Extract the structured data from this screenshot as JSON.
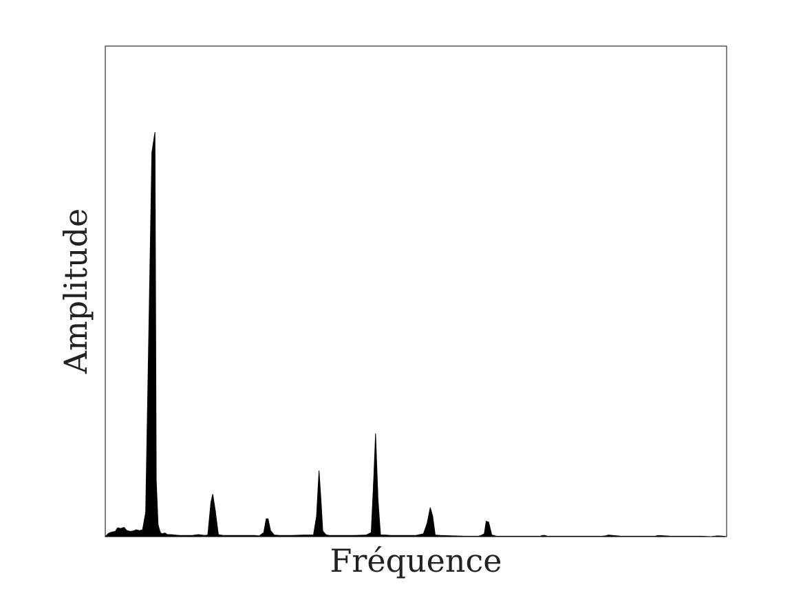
{
  "chart_data": {
    "type": "area",
    "title": "",
    "xlabel": "Fréquence",
    "ylabel": "Amplitude",
    "xlim": [
      0,
      1
    ],
    "ylim": [
      0,
      1
    ],
    "x_ticks": [],
    "y_ticks": [],
    "grid": false,
    "legend": "none",
    "fill_color": "#000000",
    "frame_color": "#000000",
    "series": [
      {
        "x": [
          0.0,
          0.005,
          0.01,
          0.016,
          0.02,
          0.025,
          0.03,
          0.035,
          0.04,
          0.045,
          0.05,
          0.055,
          0.06,
          0.065,
          0.07,
          0.075,
          0.08,
          0.082,
          0.085,
          0.087,
          0.089,
          0.091,
          0.093,
          0.096,
          0.1,
          0.106,
          0.112,
          0.12,
          0.14,
          0.15,
          0.16,
          0.165,
          0.17,
          0.173,
          0.177,
          0.182,
          0.19,
          0.2,
          0.22,
          0.24,
          0.248,
          0.255,
          0.259,
          0.262,
          0.266,
          0.272,
          0.28,
          0.3,
          0.32,
          0.335,
          0.34,
          0.344,
          0.347,
          0.35,
          0.355,
          0.36,
          0.368,
          0.38,
          0.4,
          0.42,
          0.428,
          0.432,
          0.435,
          0.439,
          0.443,
          0.45,
          0.46,
          0.48,
          0.5,
          0.512,
          0.518,
          0.523,
          0.527,
          0.531,
          0.54,
          0.56,
          0.58,
          0.6,
          0.605,
          0.61,
          0.613,
          0.617,
          0.622,
          0.63,
          0.65,
          0.68,
          0.7,
          0.703,
          0.707,
          0.712,
          0.72,
          0.75,
          0.78,
          0.8,
          0.805,
          0.81,
          0.83,
          0.86,
          0.88,
          0.885,
          0.89,
          0.91,
          0.94,
          0.96,
          0.975,
          0.98,
          0.985,
          0.995,
          1.0
        ],
        "y": [
          0.0,
          0.008,
          0.011,
          0.013,
          0.022,
          0.02,
          0.023,
          0.015,
          0.013,
          0.014,
          0.017,
          0.015,
          0.017,
          0.06,
          0.5,
          0.95,
          1.0,
          0.14,
          0.03,
          0.018,
          0.01,
          0.007,
          0.008,
          0.009,
          0.005,
          0.005,
          0.004,
          0.003,
          0.003,
          0.005,
          0.003,
          0.004,
          0.085,
          0.105,
          0.065,
          0.005,
          0.003,
          0.003,
          0.003,
          0.003,
          0.002,
          0.01,
          0.044,
          0.044,
          0.015,
          0.004,
          0.003,
          0.003,
          0.004,
          0.004,
          0.05,
          0.163,
          0.095,
          0.014,
          0.005,
          0.003,
          0.003,
          0.003,
          0.003,
          0.004,
          0.01,
          0.141,
          0.255,
          0.09,
          0.004,
          0.004,
          0.003,
          0.003,
          0.003,
          0.007,
          0.033,
          0.072,
          0.05,
          0.004,
          0.003,
          0.002,
          0.001,
          0.001,
          0.003,
          0.007,
          0.038,
          0.036,
          0.004,
          0.001,
          0.001,
          0.001,
          0.001,
          0.003,
          0.003,
          0.001,
          0.001,
          0.001,
          0.001,
          0.001,
          0.002,
          0.004,
          0.001,
          0.001,
          0.001,
          0.001,
          0.003,
          0.001,
          0.001,
          0.001,
          0.0,
          0.001,
          0.002,
          0.001,
          0.0
        ]
      }
    ]
  }
}
